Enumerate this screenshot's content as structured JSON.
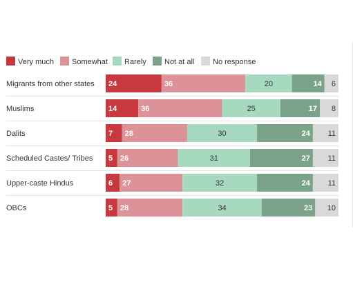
{
  "chart_data": {
    "type": "bar",
    "orientation": "horizontal",
    "stacked": true,
    "xlim": [
      0,
      100
    ],
    "grid": false,
    "legend_position": "top-left",
    "categories": [
      "Migrants from other states",
      "Muslims",
      "Dalits",
      "Scheduled Castes/ Tribes",
      "Upper-caste Hindus",
      "OBCs"
    ],
    "series": [
      {
        "name": "Very much",
        "color": "#c8393f",
        "label_color": "#ffffff",
        "values": [
          24,
          14,
          7,
          5,
          6,
          5
        ]
      },
      {
        "name": "Somewhat",
        "color": "#dc9297",
        "label_color": "#ffffff",
        "values": [
          36,
          36,
          28,
          26,
          27,
          28
        ]
      },
      {
        "name": "Rarely",
        "color": "#a7d9c1",
        "label_color": "#333333",
        "values": [
          20,
          25,
          30,
          31,
          32,
          34
        ]
      },
      {
        "name": "Not at all",
        "color": "#7ba38a",
        "label_color": "#ffffff",
        "values": [
          14,
          17,
          24,
          27,
          24,
          23
        ]
      },
      {
        "name": "No response",
        "color": "#d9d9d9",
        "label_color": "#333333",
        "values": [
          6,
          8,
          11,
          11,
          11,
          10
        ]
      }
    ]
  }
}
